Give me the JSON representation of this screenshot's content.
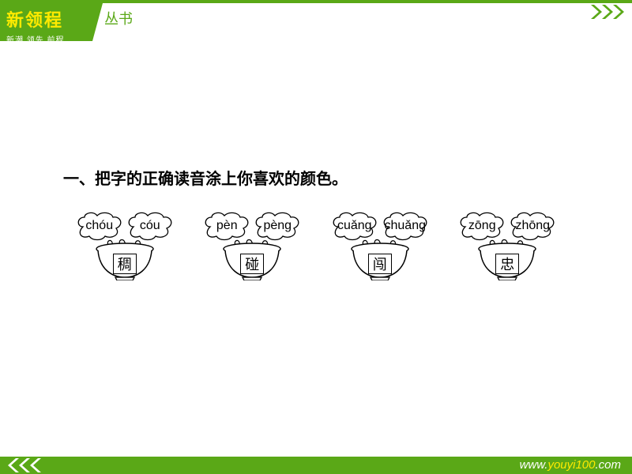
{
  "colors": {
    "brand_green": "#5aa817",
    "brand_yellow": "#ffea00",
    "white": "#ffffff",
    "black": "#000000",
    "stroke": "#000000",
    "bg": "#ffffff"
  },
  "header": {
    "brand_title": "新领程",
    "brand_sub": "新潮 领先 前程",
    "side_text": "丛书"
  },
  "footer": {
    "url_prefix": "www.",
    "url_highlight": "youyi100",
    "url_suffix": ".com"
  },
  "content": {
    "question": "一、把字的正确读音涂上你喜欢的颜色。",
    "items": [
      {
        "pinyin_left": "chóu",
        "pinyin_right": "cóu",
        "char": "稠"
      },
      {
        "pinyin_left": "pèn",
        "pinyin_right": "pèng",
        "char": "碰"
      },
      {
        "pinyin_left": "cuǎng",
        "pinyin_right": "chuǎng",
        "char": "闯"
      },
      {
        "pinyin_left": "zōng",
        "pinyin_right": "zhōng",
        "char": "忠"
      }
    ]
  },
  "typography": {
    "question_fontsize": 20,
    "pinyin_fontsize": 16,
    "char_fontsize": 18,
    "brand_title_fontsize": 22
  }
}
